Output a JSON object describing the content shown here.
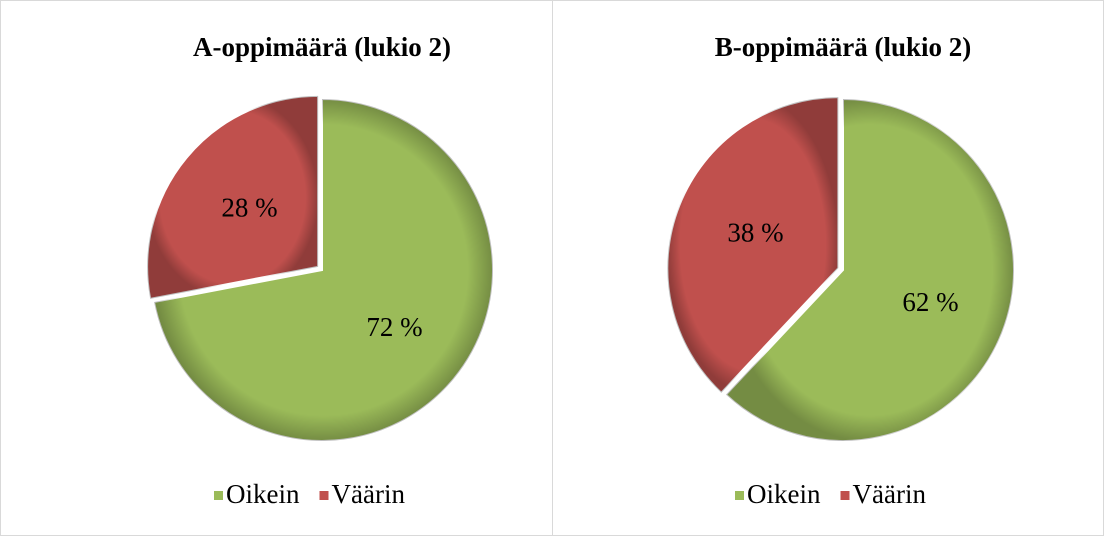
{
  "chart_data": [
    {
      "type": "pie",
      "title": "A-oppimäärä (lukio 2)",
      "categories": [
        "Oikein",
        "Väärin"
      ],
      "values": [
        72,
        28
      ],
      "value_labels": [
        "72 %",
        "28 %"
      ],
      "colors": [
        "#9bbb59",
        "#c0504d"
      ],
      "legend": "bottom"
    },
    {
      "type": "pie",
      "title": "B-oppimäärä (lukio 2)",
      "categories": [
        "Oikein",
        "Väärin"
      ],
      "values": [
        62,
        38
      ],
      "value_labels": [
        "62 %",
        "38 %"
      ],
      "colors": [
        "#9bbb59",
        "#c0504d"
      ],
      "legend": "bottom"
    }
  ]
}
